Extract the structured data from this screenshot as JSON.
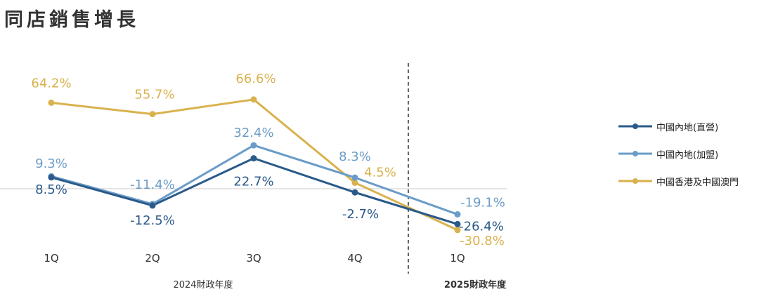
{
  "title": "同店銷售增長",
  "colors": {
    "series_1": "#2a5a8a",
    "series_2": "#6b9cc8",
    "series_3": "#d9b24e",
    "baseline": "#cccccc",
    "divider": "#333333"
  },
  "chart_data": {
    "type": "line",
    "categories": [
      "1Q",
      "2Q",
      "3Q",
      "4Q",
      "1Q"
    ],
    "year_groups": [
      {
        "label": "2024財政年度",
        "categories": [
          0,
          1,
          2,
          3
        ]
      },
      {
        "label": "2025財政年度",
        "categories": [
          4
        ]
      }
    ],
    "series": [
      {
        "name": "中國內地(直營)",
        "values": [
          8.5,
          -12.5,
          22.7,
          -2.7,
          -26.4
        ],
        "labels": [
          "8.5%",
          "-12.5%",
          "22.7%",
          "-2.7%",
          "-26.4%"
        ]
      },
      {
        "name": "中國內地(加盟)",
        "values": [
          9.3,
          -11.4,
          32.4,
          8.3,
          -19.1
        ],
        "labels": [
          "9.3%",
          "-11.4%",
          "32.4%",
          "8.3%",
          "-19.1%"
        ]
      },
      {
        "name": "中國香港及中國澳門",
        "values": [
          64.2,
          55.7,
          66.6,
          4.5,
          -30.8
        ],
        "labels": [
          "64.2%",
          "55.7%",
          "66.6%",
          "4.5%",
          "-30.8%"
        ]
      }
    ],
    "ylim": [
      -40,
      80
    ],
    "legend_position": "right",
    "grid": false,
    "zero_line": true,
    "divider_after_category": 3
  }
}
